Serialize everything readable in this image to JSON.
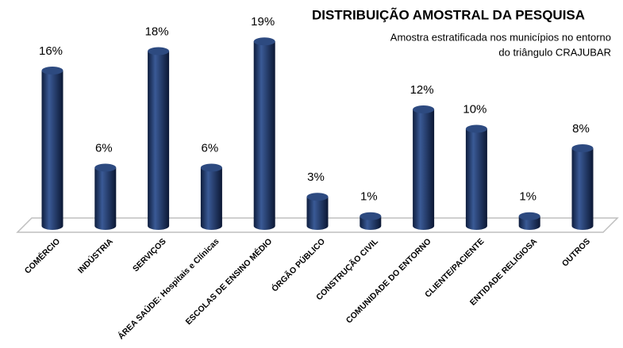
{
  "chart_data": {
    "type": "bar",
    "title": "DISTRIBUIÇÃO AMOSTRAL DA PESQUISA",
    "subtitle": [
      "Amostra estratificada nos municípios no entorno",
      "do triângulo CRAJUBAR"
    ],
    "categories": [
      "COMÉRCIO",
      "INDÚSTRIA",
      "SERVIÇOS",
      "ÁREA SAÚDE: Hospitais e Clínicas",
      "ESCOLAS DE ENSINO MÉDIO",
      "ÓRGÃO PÚBLICO",
      "CONSTRUÇÃO CIVIL",
      "COMUNIDADE DO ENTORNO",
      "CLIENTE/PACIENTE",
      "ENTIDADE RELIGIOSA",
      "OUTROS"
    ],
    "values": [
      16,
      6,
      18,
      6,
      19,
      3,
      1,
      12,
      10,
      1,
      8
    ],
    "value_labels": [
      "16%",
      "6%",
      "18%",
      "6%",
      "19%",
      "3%",
      "1%",
      "12%",
      "10%",
      "1%",
      "8%"
    ],
    "color": "#1f3864"
  }
}
